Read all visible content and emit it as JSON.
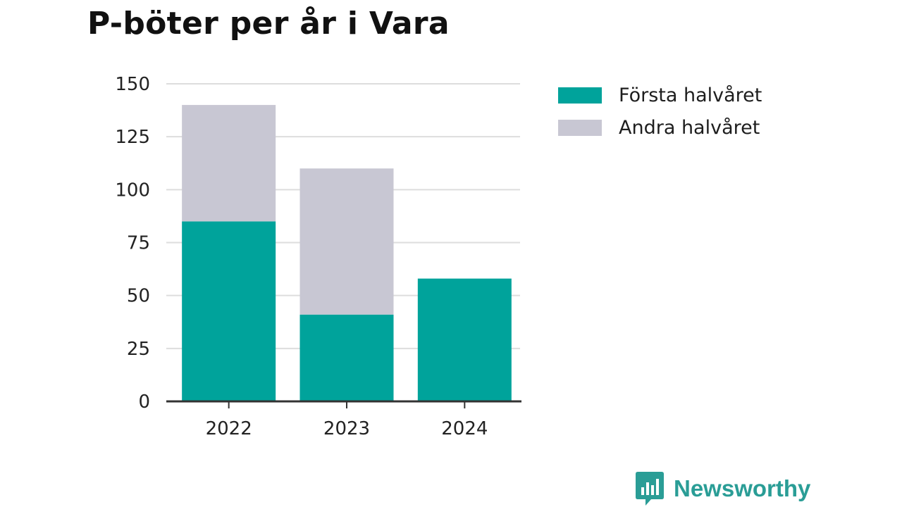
{
  "title": "P-böter per år i Vara",
  "colors": {
    "first_half": "#00a39b",
    "second_half": "#c8c7d3",
    "grid": "#dddddd",
    "axis": "#333333",
    "brand": "#2a9d96"
  },
  "brand": {
    "name": "Newsworthy"
  },
  "chart_data": {
    "type": "bar",
    "stacked": true,
    "title": "P-böter per år i Vara",
    "xlabel": "",
    "ylabel": "",
    "categories": [
      "2022",
      "2023",
      "2024"
    ],
    "series": [
      {
        "name": "Första halvåret",
        "values": [
          85,
          41,
          58
        ]
      },
      {
        "name": "Andra halvåret",
        "values": [
          55,
          69,
          0
        ]
      }
    ],
    "ylim": [
      0,
      150
    ],
    "yticks": [
      "0",
      "25",
      "50",
      "75",
      "100",
      "125",
      "150"
    ],
    "grid": true,
    "legend_position": "right"
  }
}
